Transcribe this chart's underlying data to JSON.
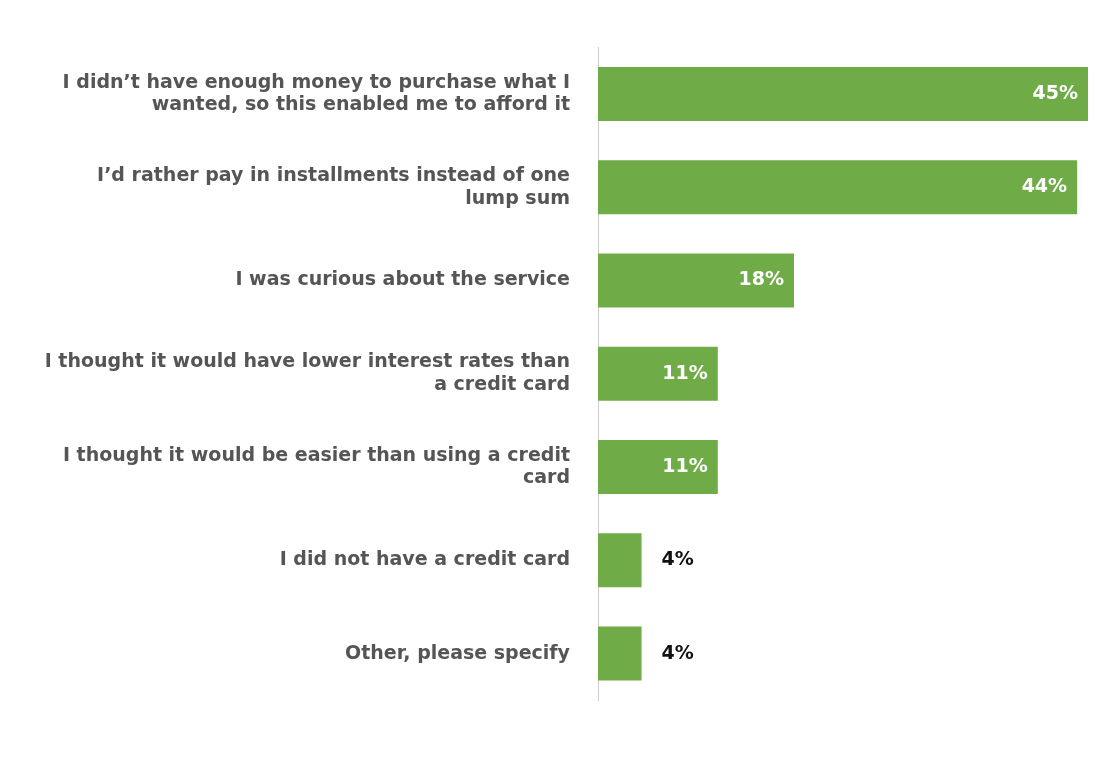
{
  "chart_data": {
    "type": "bar",
    "orientation": "horizontal",
    "categories": [
      "I didn’t have enough money to purchase what I wanted, so this enabled me to afford it",
      "I’d rather pay in installments instead of one lump sum",
      "I was curious about the service",
      "I thought it would have lower interest rates than a credit card",
      "I thought it would be easier than using a credit card",
      "I did not have a credit card",
      "Other, please specify"
    ],
    "values": [
      45,
      44,
      18,
      11,
      11,
      4,
      4
    ],
    "value_labels": [
      "45%",
      "44%",
      "18%",
      "11%",
      "11%",
      "4%",
      "4%"
    ],
    "color": "#6fab46",
    "grid": false,
    "legend": false
  }
}
